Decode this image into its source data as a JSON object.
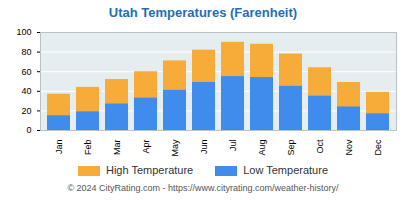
{
  "chart_data": {
    "type": "bar",
    "title": "Utah Temperatures (Farenheit)",
    "categories": [
      "Jan",
      "Feb",
      "Mar",
      "Apr",
      "May",
      "Jun",
      "Jul",
      "Aug",
      "Sep",
      "Oct",
      "Nov",
      "Dec"
    ],
    "series": [
      {
        "name": "High Temperature",
        "color": "#f7ab38",
        "values": [
          37,
          44,
          52,
          60,
          71,
          82,
          90,
          88,
          78,
          64,
          49,
          39
        ]
      },
      {
        "name": "Low Temperature",
        "color": "#3f8cec",
        "values": [
          15,
          19,
          27,
          33,
          41,
          49,
          55,
          54,
          45,
          35,
          24,
          17
        ]
      }
    ],
    "stacked": false,
    "ylim": [
      0,
      100
    ],
    "yticks": [
      0,
      20,
      40,
      60,
      80,
      100
    ],
    "grid": true,
    "legend": "bottom",
    "caption": "© 2024 CityRating.com - https://www.cityrating.com/weather-history/"
  }
}
